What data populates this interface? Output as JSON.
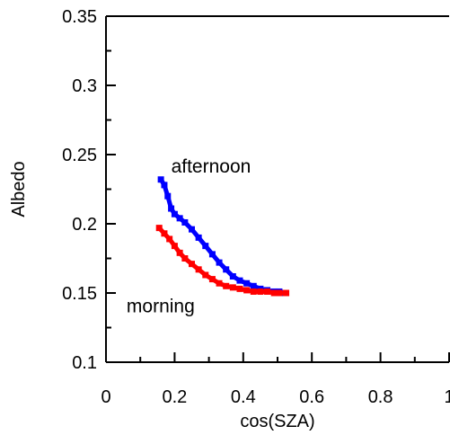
{
  "chart_data": {
    "type": "line",
    "title": "",
    "xlabel": "cos(SZA)",
    "ylabel": "Albedo",
    "xlim": [
      0,
      1
    ],
    "ylim": [
      0.1,
      0.35
    ],
    "xticks": [
      0,
      0.2,
      0.4,
      0.6,
      0.8,
      1
    ],
    "xtick_labels": [
      "0",
      "0.2",
      "0.4",
      "0.6",
      "0.8",
      "1"
    ],
    "yticks": [
      0.1,
      0.15,
      0.2,
      0.25,
      0.3,
      0.35
    ],
    "ytick_labels": [
      "0.1",
      "0.15",
      "0.2",
      "0.25",
      "0.3",
      "0.35"
    ],
    "grid": false,
    "annotations": [
      {
        "text": "afternoon",
        "x": 0.19,
        "y": 0.237
      },
      {
        "text": "morning",
        "x": 0.06,
        "y": 0.136
      }
    ],
    "series": [
      {
        "color": "#0000ff",
        "x": [
          0.16,
          0.17,
          0.18,
          0.19,
          0.2,
          0.215,
          0.23,
          0.25,
          0.27,
          0.29,
          0.31,
          0.33,
          0.35,
          0.37,
          0.39,
          0.41,
          0.43,
          0.45,
          0.47,
          0.49,
          0.505,
          0.52
        ],
        "y": [
          0.232,
          0.228,
          0.22,
          0.211,
          0.207,
          0.204,
          0.201,
          0.196,
          0.19,
          0.184,
          0.178,
          0.172,
          0.167,
          0.162,
          0.159,
          0.157,
          0.155,
          0.153,
          0.152,
          0.151,
          0.151,
          0.15
        ]
      },
      {
        "color": "#ff0000",
        "x": [
          0.155,
          0.17,
          0.185,
          0.2,
          0.215,
          0.23,
          0.25,
          0.27,
          0.29,
          0.31,
          0.33,
          0.35,
          0.37,
          0.39,
          0.41,
          0.43,
          0.45,
          0.47,
          0.49,
          0.505,
          0.525
        ],
        "y": [
          0.197,
          0.193,
          0.189,
          0.184,
          0.179,
          0.175,
          0.171,
          0.167,
          0.163,
          0.16,
          0.157,
          0.155,
          0.154,
          0.153,
          0.152,
          0.151,
          0.151,
          0.151,
          0.15,
          0.15,
          0.15
        ]
      }
    ]
  }
}
